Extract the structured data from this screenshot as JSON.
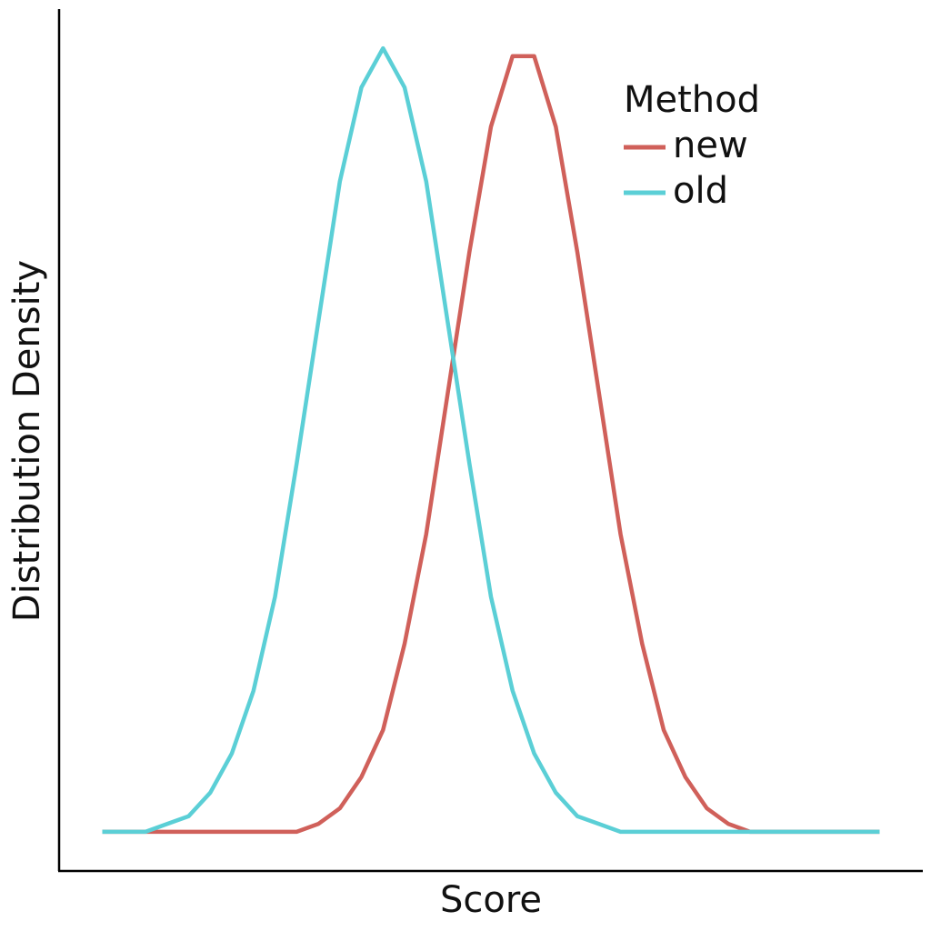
{
  "chart_data": {
    "type": "line",
    "x_label": "Score",
    "y_label": "Distribution Density",
    "x": [
      0.5,
      0.75,
      1.0,
      1.25,
      1.5,
      1.75,
      2.0,
      2.25,
      2.5,
      2.75,
      3.0,
      3.25,
      3.5,
      3.75,
      4.0,
      4.25,
      4.5,
      4.75,
      5.0,
      5.25,
      5.5,
      5.75,
      6.0,
      6.25,
      6.5,
      6.75,
      7.0,
      7.25,
      7.5,
      7.75,
      8.0,
      8.25,
      8.5,
      8.75,
      9.0,
      9.25,
      9.5
    ],
    "series": [
      {
        "name": "new",
        "color": "#d0605a",
        "values": [
          0,
          0,
          0,
          0,
          0,
          0,
          0,
          0,
          0,
          0,
          0.01,
          0.03,
          0.07,
          0.13,
          0.24,
          0.38,
          0.56,
          0.74,
          0.9,
          0.99,
          0.99,
          0.9,
          0.74,
          0.56,
          0.38,
          0.24,
          0.13,
          0.07,
          0.03,
          0.01,
          0,
          0,
          0,
          0,
          0,
          0,
          0
        ]
      },
      {
        "name": "old",
        "color": "#5bcfd6",
        "values": [
          0,
          0,
          0,
          0.01,
          0.02,
          0.05,
          0.1,
          0.18,
          0.3,
          0.47,
          0.65,
          0.83,
          0.95,
          1,
          0.95,
          0.83,
          0.65,
          0.47,
          0.3,
          0.18,
          0.1,
          0.05,
          0.02,
          0.01,
          0,
          0,
          0,
          0,
          0,
          0,
          0,
          0,
          0,
          0,
          0,
          0,
          0
        ]
      }
    ],
    "legend_title": "Method",
    "legend_position": "upper right",
    "xlim": [
      0,
      10
    ],
    "ylim": [
      -0.05,
      1.05
    ],
    "grid": false
  }
}
